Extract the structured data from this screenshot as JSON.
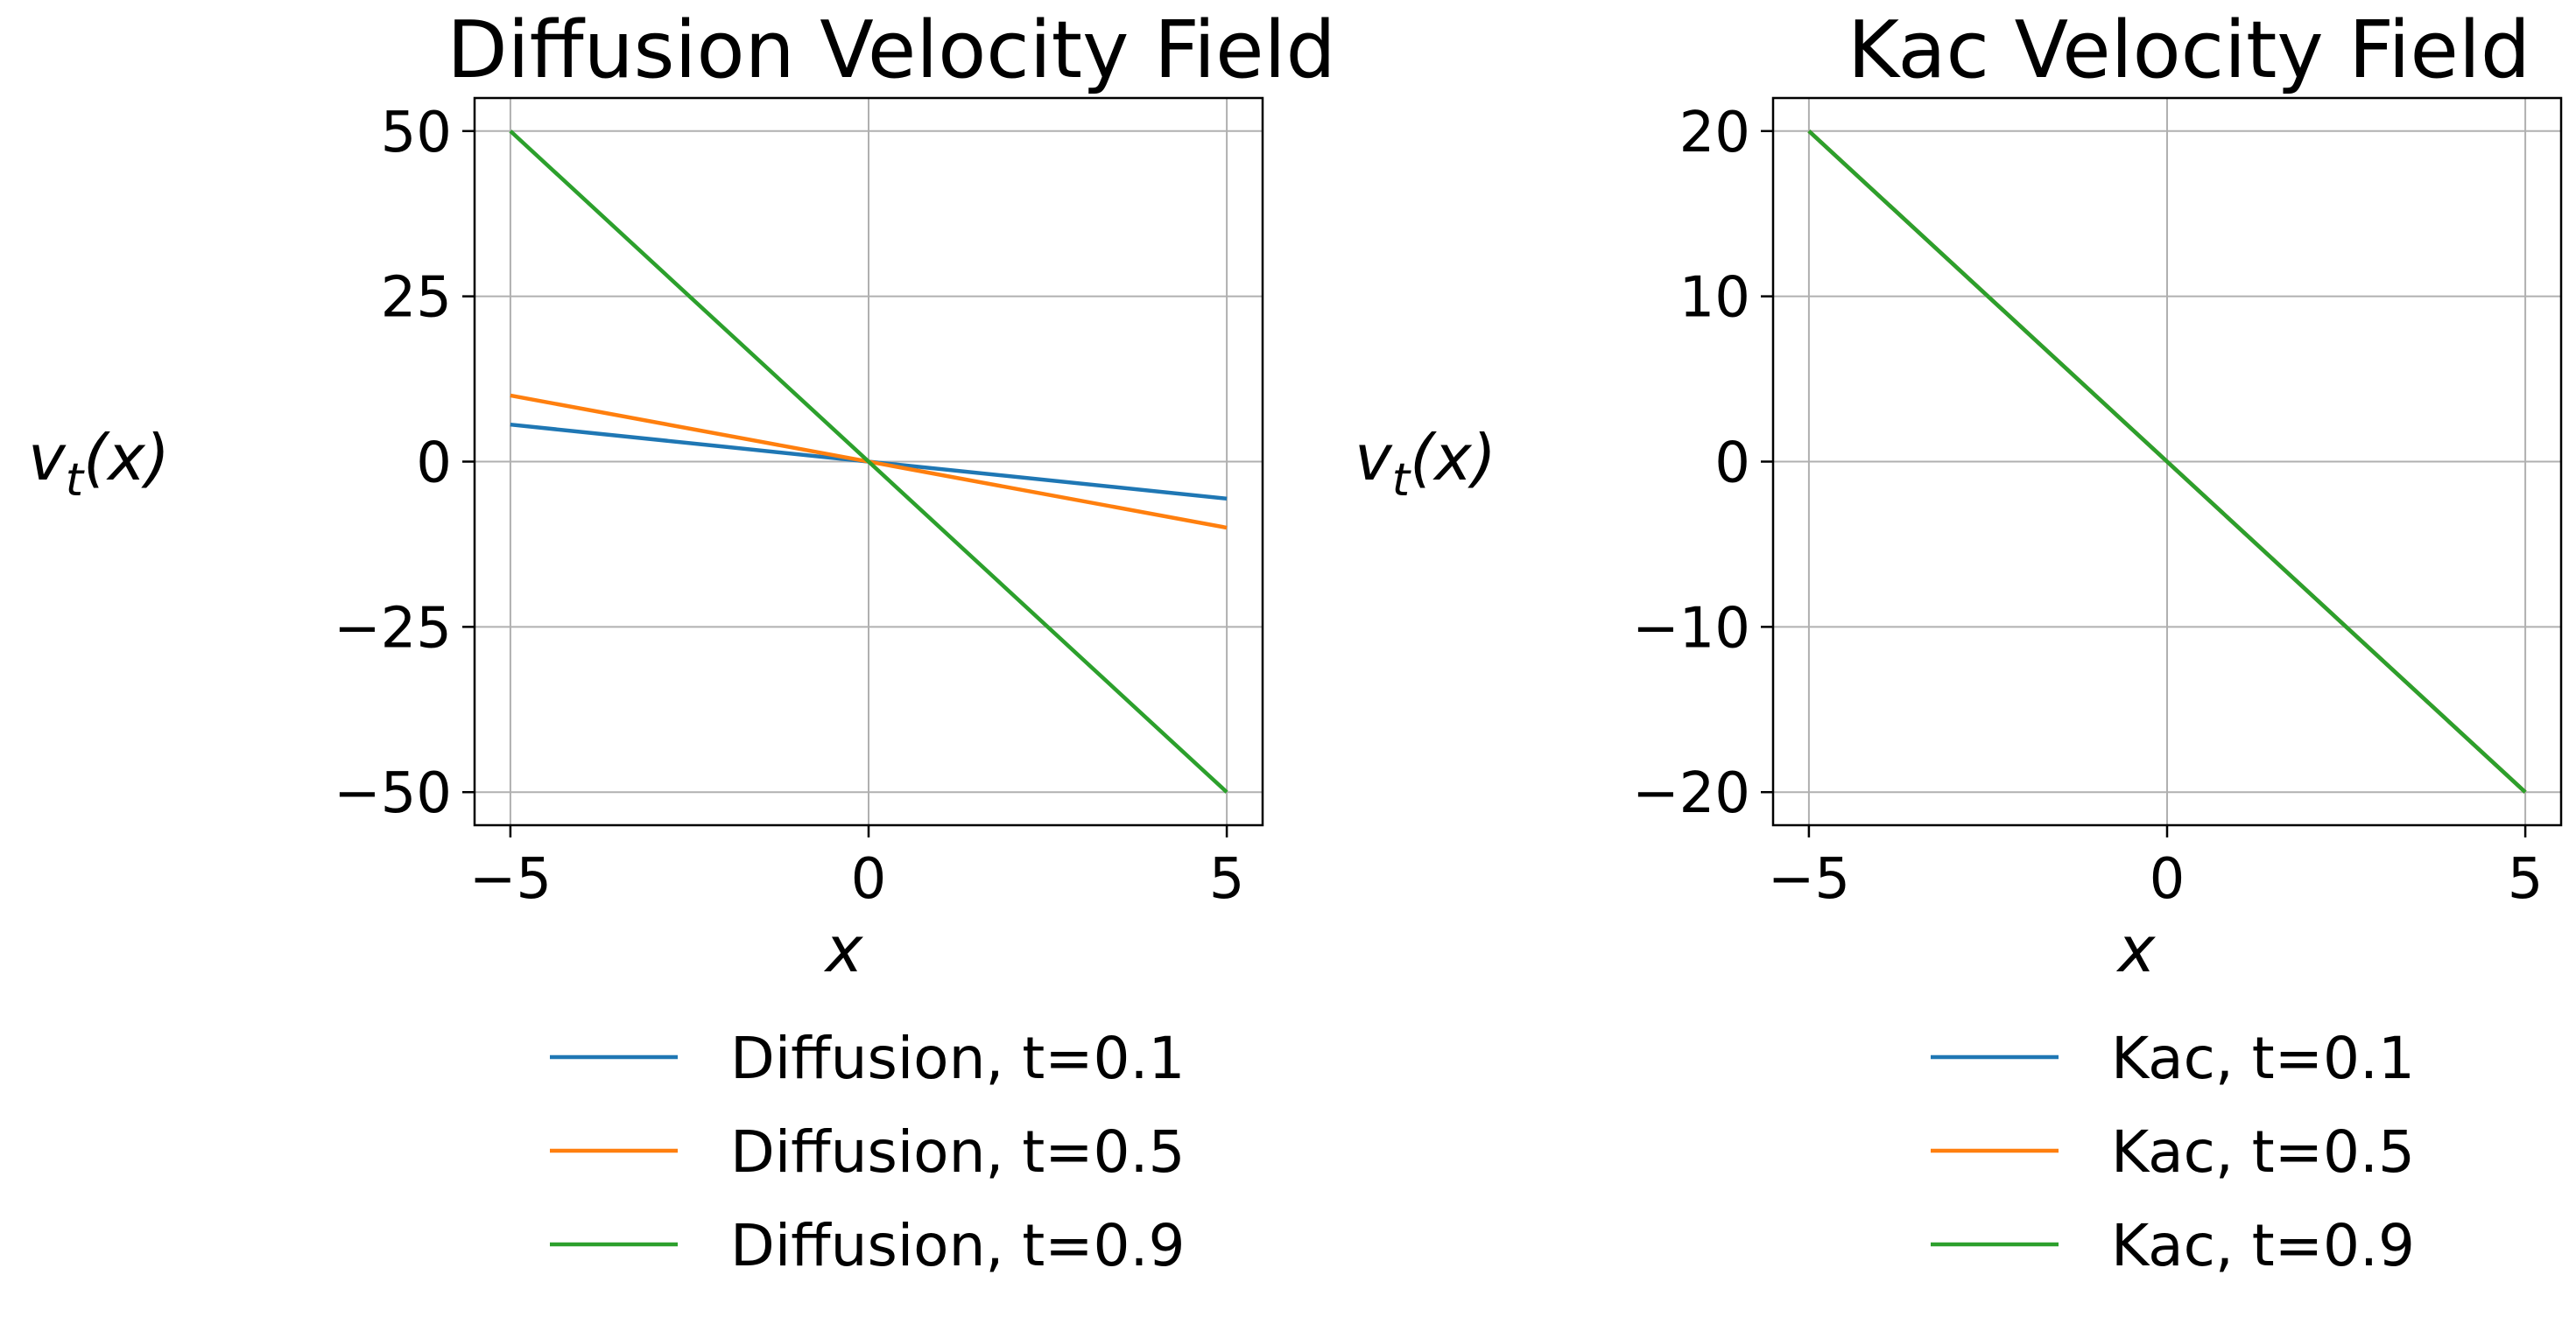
{
  "chart_data": [
    {
      "type": "line",
      "title": "Diffusion Velocity Field",
      "xlabel": "x",
      "ylabel": "v_t(x)",
      "xlim": [
        -5.5,
        5.5
      ],
      "ylim": [
        -55,
        55
      ],
      "xticks": [
        -5,
        0,
        5
      ],
      "xtick_labels": [
        "−5",
        "0",
        "5"
      ],
      "yticks": [
        -50,
        -25,
        0,
        25,
        50
      ],
      "ytick_labels": [
        "−50",
        "−25",
        "0",
        "25",
        "50"
      ],
      "grid": true,
      "legend_position": "below",
      "series": [
        {
          "name": "Diffusion, t=0.1",
          "color": "#1f77b4",
          "x": [
            -5,
            5
          ],
          "y": [
            5.6,
            -5.6
          ]
        },
        {
          "name": "Diffusion, t=0.5",
          "color": "#ff7f0e",
          "x": [
            -5,
            5
          ],
          "y": [
            10,
            -10
          ]
        },
        {
          "name": "Diffusion, t=0.9",
          "color": "#2ca02c",
          "x": [
            -5,
            5
          ],
          "y": [
            50,
            -50
          ]
        }
      ]
    },
    {
      "type": "line",
      "title": "Kac Velocity Field",
      "xlabel": "x",
      "ylabel": "v_t(x)",
      "xlim": [
        -5.5,
        5.5
      ],
      "ylim": [
        -22,
        22
      ],
      "xticks": [
        -5,
        0,
        5
      ],
      "xtick_labels": [
        "−5",
        "0",
        "5"
      ],
      "yticks": [
        -20,
        -10,
        0,
        10,
        20
      ],
      "ytick_labels": [
        "−20",
        "−10",
        "0",
        "10",
        "20"
      ],
      "grid": true,
      "legend_position": "below",
      "series": [
        {
          "name": "Kac, t=0.1",
          "color": "#1f77b4",
          "x": [
            -5,
            5
          ],
          "y": [
            20,
            -20
          ]
        },
        {
          "name": "Kac, t=0.5",
          "color": "#ff7f0e",
          "x": [
            -5,
            5
          ],
          "y": [
            20,
            -20
          ]
        },
        {
          "name": "Kac, t=0.9",
          "color": "#2ca02c",
          "x": [
            -5,
            5
          ],
          "y": [
            20,
            -20
          ]
        }
      ]
    }
  ]
}
